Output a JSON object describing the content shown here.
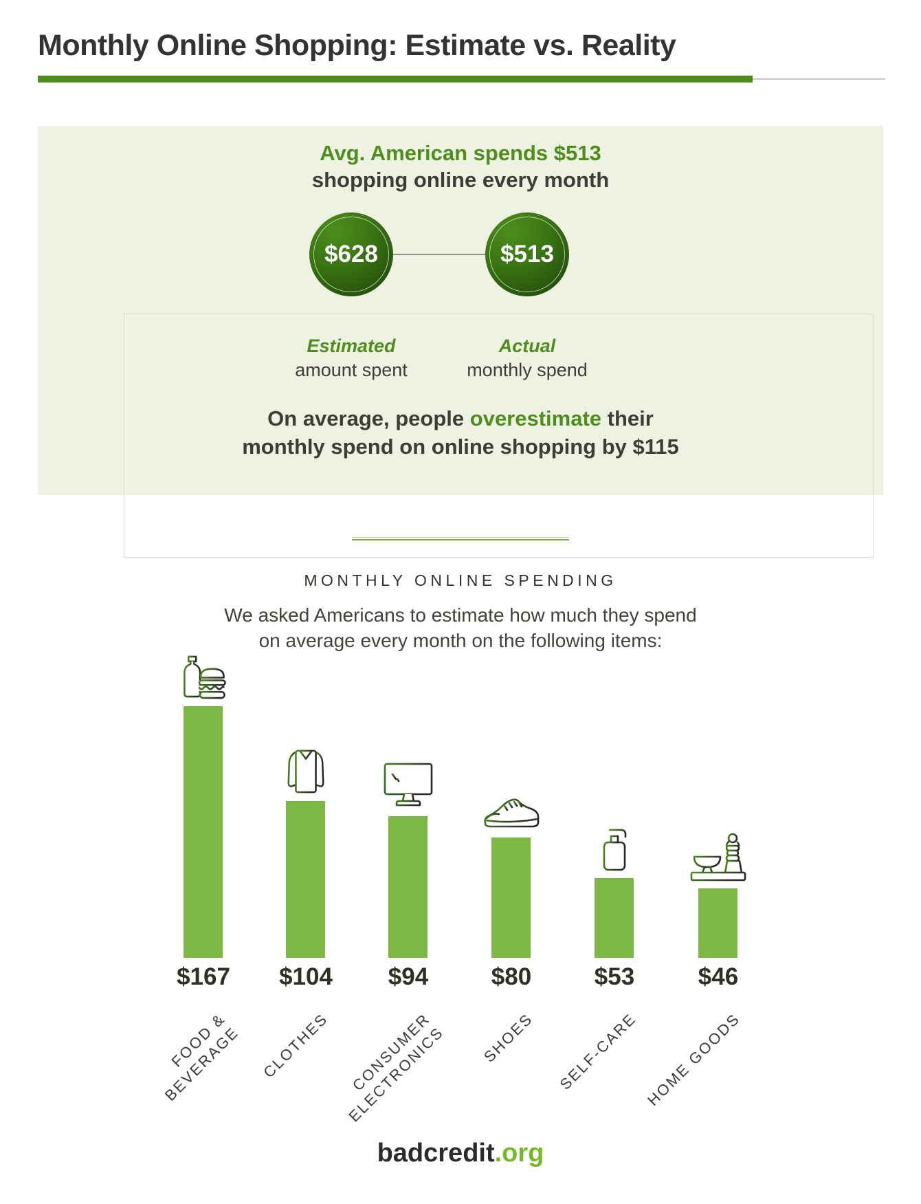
{
  "header": {
    "title": "Monthly Online Shopping: Estimate vs. Reality"
  },
  "panel": {
    "headline_green": "Avg. American spends $513",
    "headline_dark": "shopping online every month",
    "circles": [
      {
        "value": "$628",
        "label_em": "Estimated",
        "label_rest": "amount spent"
      },
      {
        "value": "$513",
        "label_em": "Actual",
        "label_rest": "monthly spend"
      }
    ],
    "conclusion": {
      "pre": "On average, people ",
      "em": "overestimate",
      "post": " their",
      "line2": "monthly spend on online shopping by $115"
    }
  },
  "chart_data": {
    "type": "bar",
    "title": "MONTHLY ONLINE SPENDING",
    "subtitle": "We asked Americans to estimate how much they spend\non average every month on the following items:",
    "categories": [
      "Food & Beverage",
      "Clothes",
      "Consumer Electronics",
      "Shoes",
      "Self-Care",
      "Home Goods"
    ],
    "category_labels": [
      "FOOD &\nBEVERAGE",
      "CLOTHES",
      "CONSUMER\nELECTRONICS",
      "SHOES",
      "SELF-CARE",
      "HOME GOODS"
    ],
    "values": [
      167,
      104,
      94,
      80,
      53,
      46
    ],
    "value_labels": [
      "$167",
      "$104",
      "$94",
      "$80",
      "$53",
      "$46"
    ],
    "unit": "USD spent per month",
    "icons": [
      "food-beverage",
      "clothes",
      "consumer-electronics",
      "shoes",
      "self-care",
      "home-goods"
    ],
    "ylim": [
      0,
      167
    ],
    "grid": false,
    "legend": "none"
  },
  "colors": {
    "bar_green": "#7cb843",
    "deep_green": "#4e8d1e",
    "panel_bg": "#edf2e2",
    "dark_text": "#3b3e35"
  },
  "footer": {
    "brand": "badcredit",
    "tld": ".org"
  }
}
